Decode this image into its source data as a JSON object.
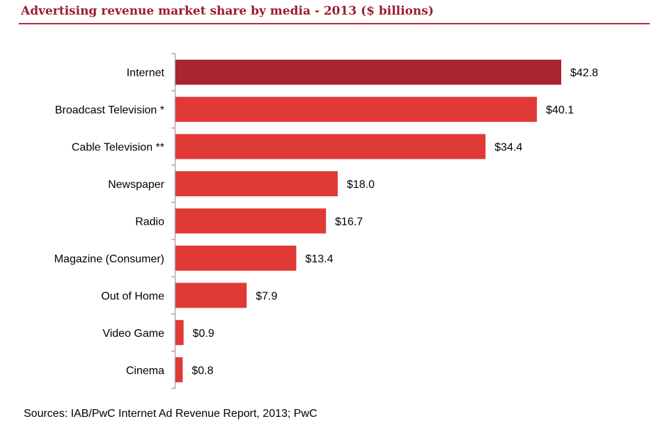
{
  "chart_data": {
    "type": "bar",
    "orientation": "horizontal",
    "title": "Advertising revenue market share by media - 2013 ($ billions)",
    "categories": [
      "Internet",
      "Broadcast Television *",
      "Cable Television **",
      "Newspaper",
      "Radio",
      "Magazine (Consumer)",
      "Out of Home",
      "Video Game",
      "Cinema"
    ],
    "values": [
      42.8,
      40.1,
      34.4,
      18.0,
      16.7,
      13.4,
      7.9,
      0.9,
      0.8
    ],
    "data_labels": [
      "$42.8",
      "$40.1",
      "$34.4",
      "$18.0",
      "$16.7",
      "$13.4",
      "$7.9",
      "$0.9",
      "$0.8"
    ],
    "xlabel": "",
    "ylabel": "",
    "xlim": [
      0,
      42.8
    ],
    "grid": false,
    "colors": {
      "highlight": "#a92530",
      "bar": "#e03a36",
      "title": "#9b1c2e"
    },
    "source": "Sources: IAB/PwC Internet Ad Revenue Report, 2013; PwC"
  }
}
